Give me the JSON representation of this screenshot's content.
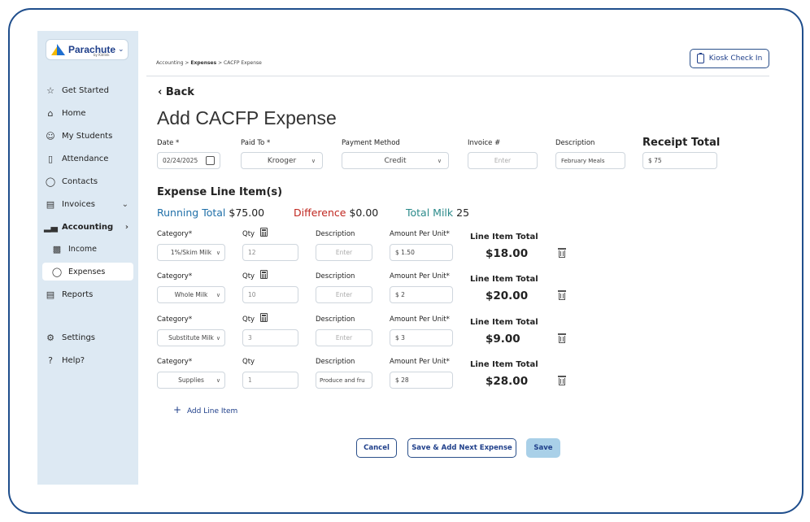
{
  "sidebar": {
    "logo_text": "Parachute",
    "logo_sub": "by Kidlink",
    "items": [
      {
        "label": "Get Started",
        "icon": "star-icon"
      },
      {
        "label": "Home",
        "icon": "home-icon"
      },
      {
        "label": "My Students",
        "icon": "students-icon"
      },
      {
        "label": "Attendance",
        "icon": "clipboard-icon"
      },
      {
        "label": "Contacts",
        "icon": "person-icon"
      },
      {
        "label": "Invoices",
        "icon": "invoice-icon"
      },
      {
        "label": "Accounting",
        "icon": "bar-chart-icon"
      },
      {
        "label": "Income",
        "icon": "cash-icon"
      },
      {
        "label": "Expenses",
        "icon": "tag-icon"
      },
      {
        "label": "Reports",
        "icon": "report-icon"
      },
      {
        "label": "Settings",
        "icon": "gear-icon"
      },
      {
        "label": "Help?",
        "icon": "help-icon"
      }
    ]
  },
  "header": {
    "breadcrumb": [
      "Accounting",
      "Expenses",
      "CACFP Expense"
    ],
    "kiosk_label": "Kiosk Check In"
  },
  "main": {
    "back_label": "Back",
    "title": "Add CACFP Expense",
    "date": {
      "label": "Date *",
      "value": "02/24/2025"
    },
    "paid_to": {
      "label": "Paid To *",
      "value": "Krooger"
    },
    "payment_method": {
      "label": "Payment Method",
      "value": "Credit"
    },
    "invoice": {
      "label": "Invoice #",
      "placeholder": "Enter"
    },
    "description": {
      "label": "Description",
      "value": "February Meals"
    },
    "receipt_total": {
      "label": "Receipt Total",
      "value": "$ 75"
    },
    "section_title": "Expense Line Item(s)",
    "running_total": {
      "label": "Running Total",
      "value": "$75.00"
    },
    "difference": {
      "label": "Difference",
      "value": "$0.00"
    },
    "total_milk": {
      "label": "Total Milk",
      "value": "25"
    },
    "line_labels": {
      "category": "Category*",
      "qty": "Qty",
      "description": "Description",
      "amount": "Amount Per Unit*",
      "line_total": "Line Item Total"
    },
    "line_items": [
      {
        "category": "1%/Skim Milk",
        "qty": "12",
        "description": "Enter",
        "amount": "$ 1.50",
        "total": "$18.00",
        "calc": true
      },
      {
        "category": "Whole Milk",
        "qty": "10",
        "description": "Enter",
        "amount": "$ 2",
        "total": "$20.00",
        "calc": true
      },
      {
        "category": "Substitute Milk",
        "qty": "3",
        "description": "Enter",
        "amount": "$ 3",
        "total": "$9.00",
        "calc": true
      },
      {
        "category": "Supplies",
        "qty": "1",
        "description": "Produce and fru",
        "amount": "$ 28",
        "total": "$28.00",
        "calc": false
      }
    ],
    "add_line_label": "Add Line Item",
    "buttons": {
      "cancel": "Cancel",
      "save_next": "Save & Add Next Expense",
      "save": "Save"
    }
  }
}
